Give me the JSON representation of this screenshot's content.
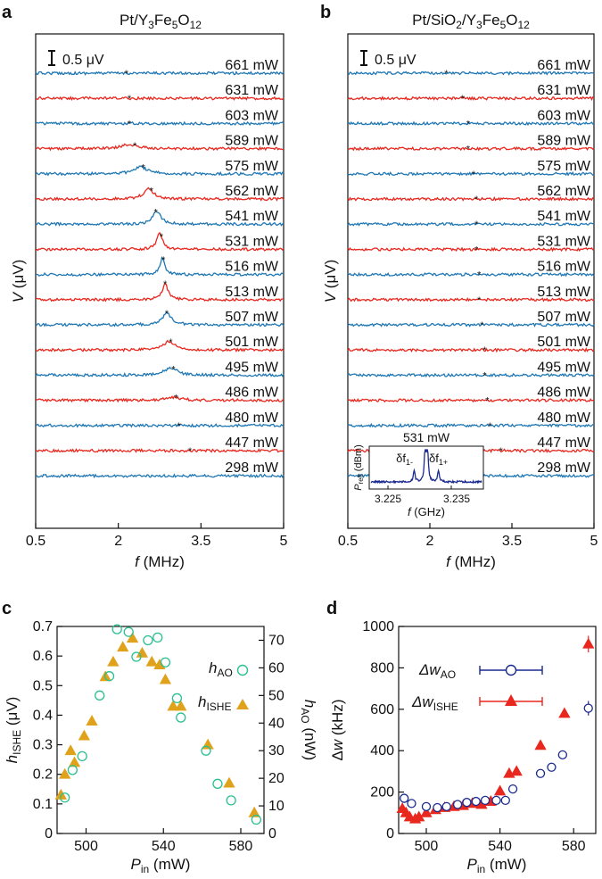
{
  "colors": {
    "blue": "#1f77b4",
    "red": "#e8281e",
    "green": "#2bbf91",
    "gold": "#e0a21a",
    "navy": "#1a2a8f",
    "ink": "#111111"
  },
  "chart_data": [
    {
      "panel": "a",
      "type": "line",
      "title": "Pt/Y3Fe5O12",
      "title_parts": {
        "base": "Pt/Y",
        "s1": "3",
        "mid1": "Fe",
        "s2": "5",
        "mid2": "O",
        "s3": "12"
      },
      "xlabel": "f (MHz)",
      "ylabel": "V (μV)",
      "xlim": [
        0.5,
        5
      ],
      "xticks": [
        0.5,
        2,
        3.5,
        5
      ],
      "xtick_labels": [
        "0.5",
        "2",
        "3.5",
        "5"
      ],
      "scale_bar": "0.5 μV",
      "series": [
        {
          "name": "661 mW",
          "color": "blue",
          "peak_f": null,
          "peak_h": 0,
          "marker_f": 2.15
        },
        {
          "name": "631 mW",
          "color": "red",
          "peak_f": null,
          "peak_h": 0,
          "marker_f": 2.2
        },
        {
          "name": "603 mW",
          "color": "blue",
          "peak_f": null,
          "peak_h": 0,
          "marker_f": 2.2
        },
        {
          "name": "589 mW",
          "color": "red",
          "peak_f": 2.2,
          "peak_h": 0.15,
          "marker_f": 2.3
        },
        {
          "name": "575 mW",
          "color": "blue",
          "peak_f": 2.4,
          "peak_h": 0.25,
          "marker_f": 2.45
        },
        {
          "name": "562 mW",
          "color": "red",
          "peak_f": 2.55,
          "peak_h": 0.35,
          "marker_f": 2.6
        },
        {
          "name": "541 mW",
          "color": "blue",
          "peak_f": 2.7,
          "peak_h": 0.45,
          "marker_f": 2.68
        },
        {
          "name": "531 mW",
          "color": "red",
          "peak_f": 2.75,
          "peak_h": 0.55,
          "marker_f": 2.78
        },
        {
          "name": "516 mW",
          "color": "blue",
          "peak_f": 2.8,
          "peak_h": 0.6,
          "marker_f": 2.82
        },
        {
          "name": "513 mW",
          "color": "red",
          "peak_f": 2.85,
          "peak_h": 0.55,
          "marker_f": 2.85
        },
        {
          "name": "507 mW",
          "color": "blue",
          "peak_f": 2.88,
          "peak_h": 0.4,
          "marker_f": 2.88
        },
        {
          "name": "501 mW",
          "color": "red",
          "peak_f": 2.92,
          "peak_h": 0.3,
          "marker_f": 2.95
        },
        {
          "name": "495 mW",
          "color": "blue",
          "peak_f": 2.95,
          "peak_h": 0.25,
          "marker_f": 3.0
        },
        {
          "name": "486 mW",
          "color": "red",
          "peak_f": 3.0,
          "peak_h": 0.1,
          "marker_f": 3.05
        },
        {
          "name": "480 mW",
          "color": "blue",
          "peak_f": null,
          "peak_h": 0,
          "marker_f": 3.1
        },
        {
          "name": "447 mW",
          "color": "red",
          "peak_f": null,
          "peak_h": 0,
          "marker_f": 3.3
        },
        {
          "name": "298 mW",
          "color": "blue",
          "peak_f": null,
          "peak_h": 0,
          "marker_f": null
        }
      ]
    },
    {
      "panel": "b",
      "type": "line",
      "title": "Pt/SiO2/Y3Fe5O12",
      "title_parts": {
        "base": "Pt/SiO",
        "s0": "2",
        "mid0": "/Y",
        "s1": "3",
        "mid1": "Fe",
        "s2": "5",
        "mid2": "O",
        "s3": "12"
      },
      "xlabel": "f (MHz)",
      "ylabel": "V (μV)",
      "xlim": [
        0.5,
        5
      ],
      "xticks": [
        0.5,
        2,
        3.5,
        5
      ],
      "xtick_labels": [
        "0.5",
        "2",
        "3.5",
        "5"
      ],
      "scale_bar": "0.5 μV",
      "series": [
        {
          "name": "661 mW",
          "color": "blue",
          "marker_f": 2.3
        },
        {
          "name": "631 mW",
          "color": "red",
          "marker_f": 2.6
        },
        {
          "name": "603 mW",
          "color": "blue",
          "marker_f": 2.7
        },
        {
          "name": "589 mW",
          "color": "red",
          "marker_f": 2.7
        },
        {
          "name": "575 mW",
          "color": "blue",
          "marker_f": 2.8
        },
        {
          "name": "562 mW",
          "color": "red",
          "marker_f": 2.85
        },
        {
          "name": "541 mW",
          "color": "blue",
          "marker_f": 2.85
        },
        {
          "name": "531 mW",
          "color": "red",
          "marker_f": 2.85
        },
        {
          "name": "516 mW",
          "color": "blue",
          "marker_f": 2.9
        },
        {
          "name": "513 mW",
          "color": "red",
          "marker_f": 2.9
        },
        {
          "name": "507 mW",
          "color": "blue",
          "marker_f": 2.95
        },
        {
          "name": "501 mW",
          "color": "red",
          "marker_f": 3.0
        },
        {
          "name": "495 mW",
          "color": "blue",
          "marker_f": 3.0
        },
        {
          "name": "486 mW",
          "color": "red",
          "marker_f": 3.05
        },
        {
          "name": "480 mW",
          "color": "blue",
          "marker_f": 3.1
        },
        {
          "name": "447 mW",
          "color": "red",
          "marker_f": 3.3
        },
        {
          "name": "298 mW",
          "color": "blue",
          "marker_f": null
        }
      ],
      "inset": {
        "title": "531 mW",
        "ylabel": "P_refl (dBm)",
        "ylabel_parts": {
          "p": "P",
          "sub": "refl",
          "unit": " (dBm)"
        },
        "xlabel": "f (GHz)",
        "xtick_labels": [
          "3.225",
          "3.235"
        ],
        "xlim": [
          3.22,
          3.24
        ],
        "peak_labels": [
          {
            "base": "δf",
            "sub": "1-"
          },
          {
            "base": "δf",
            "sub": "1+"
          }
        ],
        "peaks_ghz": [
          3.2278,
          3.2298,
          3.2302,
          3.2322
        ]
      }
    },
    {
      "panel": "c",
      "type": "scatter",
      "xlabel": "P_in (mW)",
      "ylabel": "h_ISHE (μV)",
      "ylabel_right": "h_AO (nW)",
      "xlim": [
        485,
        592
      ],
      "xticks": [
        500,
        540,
        580
      ],
      "ylim": [
        0,
        0.7
      ],
      "yticks": [
        0,
        0.1,
        0.2,
        0.3,
        0.4,
        0.5,
        0.6,
        0.7
      ],
      "ylim_right": [
        0,
        75
      ],
      "yticks_right": [
        0,
        10,
        20,
        30,
        40,
        50,
        60,
        70
      ],
      "series": [
        {
          "name": "h_AO",
          "legend": {
            "base": "h",
            "sub": "AO"
          },
          "color": "green",
          "marker": "open-circle",
          "axis": "right",
          "x": [
            489,
            493,
            498,
            507,
            512,
            516,
            522,
            526,
            532,
            537,
            541,
            547,
            549,
            562,
            568,
            575,
            588
          ],
          "y": [
            13,
            23,
            28,
            50,
            57,
            74,
            73,
            64,
            70,
            71,
            62,
            49,
            42,
            30,
            18,
            12,
            5
          ]
        },
        {
          "name": "h_ISHE",
          "legend": {
            "base": "h",
            "sub": "ISHE"
          },
          "color": "gold",
          "marker": "filled-triangle",
          "axis": "left",
          "x": [
            487,
            489,
            492,
            494,
            499,
            503,
            510,
            514,
            519,
            524,
            529,
            534,
            538,
            541,
            545,
            549,
            563,
            574,
            587
          ],
          "y": [
            0.13,
            0.2,
            0.28,
            0.24,
            0.33,
            0.38,
            0.53,
            0.58,
            0.63,
            0.66,
            0.61,
            0.58,
            0.57,
            0.52,
            0.43,
            0.43,
            0.3,
            0.17,
            0.07
          ]
        }
      ]
    },
    {
      "panel": "d",
      "type": "scatter",
      "xlabel": "P_in (mW)",
      "ylabel": "Δw (kHz)",
      "xlim": [
        485,
        592
      ],
      "xticks": [
        500,
        540,
        580
      ],
      "ylim": [
        0,
        1000
      ],
      "yticks": [
        0,
        200,
        400,
        600,
        800,
        1000
      ],
      "series": [
        {
          "name": "Δw_AO",
          "legend": {
            "base": "Δw",
            "sub": "AO"
          },
          "color": "navy",
          "marker": "open-circle",
          "x": [
            488,
            492,
            500,
            506,
            511,
            517,
            522,
            527,
            532,
            538,
            543,
            547,
            562,
            568,
            574,
            588
          ],
          "y": [
            170,
            145,
            130,
            125,
            130,
            140,
            150,
            155,
            160,
            160,
            160,
            215,
            290,
            320,
            380,
            605
          ],
          "err": [
            10,
            10,
            10,
            10,
            10,
            10,
            10,
            10,
            10,
            10,
            10,
            12,
            15,
            15,
            15,
            35
          ]
        },
        {
          "name": "Δw_ISHE",
          "legend": {
            "base": "Δw",
            "sub": "ISHE"
          },
          "color": "red",
          "marker": "filled-triangle",
          "x": [
            487,
            489,
            491,
            494,
            496,
            500,
            505,
            510,
            515,
            520,
            525,
            530,
            535,
            540,
            545,
            549,
            562,
            575,
            588
          ],
          "y": [
            120,
            100,
            80,
            70,
            80,
            100,
            115,
            125,
            130,
            135,
            145,
            140,
            155,
            205,
            290,
            300,
            425,
            580,
            915
          ],
          "err": [
            8,
            8,
            8,
            8,
            8,
            8,
            8,
            8,
            8,
            8,
            8,
            8,
            8,
            10,
            12,
            12,
            15,
            15,
            40
          ]
        }
      ]
    }
  ],
  "panel_letters": [
    "a",
    "b",
    "c",
    "d"
  ]
}
